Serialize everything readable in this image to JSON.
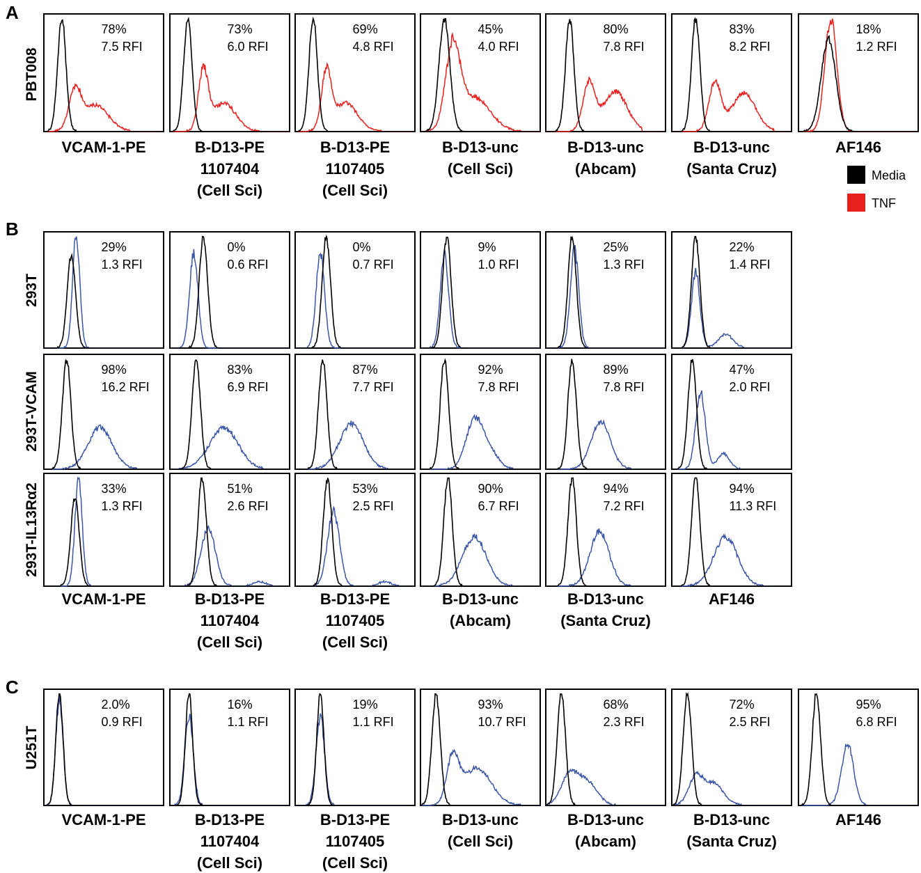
{
  "colors": {
    "media": "#000000",
    "tnf": "#e8201e",
    "transduced": "#3a56a5"
  },
  "legend": [
    {
      "label": "Media",
      "color": "#000000"
    },
    {
      "label": "TNF",
      "color": "#e8201e"
    }
  ],
  "panels": [
    {
      "letter": "A"
    },
    {
      "letter": "B"
    },
    {
      "letter": "C"
    }
  ],
  "chart_data": [
    {
      "type": "area",
      "panel": "A",
      "row_label": "PBT008",
      "series": [
        {
          "name": "Media"
        },
        {
          "name": "TNF"
        }
      ],
      "plots": [
        {
          "pct": "78%",
          "rfi": "7.5 RFI",
          "xlabel": [
            "VCAM-1-PE"
          ],
          "control": {
            "mu": 0.15,
            "sd": 0.035,
            "h": 1.0
          },
          "test": {
            "comps": [
              [
                0.26,
                0.05,
                0.33
              ],
              [
                0.43,
                0.11,
                0.23
              ]
            ],
            "end": 0.72
          }
        },
        {
          "pct": "73%",
          "rfi": "6.0 RFI",
          "xlabel": [
            "B-D13-PE",
            "1107404",
            "(Cell Sci)"
          ],
          "control": {
            "mu": 0.15,
            "sd": 0.035,
            "h": 1.0
          },
          "test": {
            "comps": [
              [
                0.28,
                0.04,
                0.52
              ],
              [
                0.45,
                0.1,
                0.25
              ]
            ],
            "end": 0.76
          }
        },
        {
          "pct": "69%",
          "rfi": "4.8 RFI",
          "xlabel": [
            "B-D13-PE",
            "1107405",
            "(Cell Sci)"
          ],
          "control": {
            "mu": 0.15,
            "sd": 0.035,
            "h": 1.0
          },
          "test": {
            "comps": [
              [
                0.26,
                0.04,
                0.5
              ],
              [
                0.42,
                0.1,
                0.25
              ]
            ],
            "end": 0.76
          }
        },
        {
          "pct": "45%",
          "rfi": "4.0 RFI",
          "xlabel": [
            "B-D13-unc",
            "(Cell Sci)"
          ],
          "control": {
            "mu": 0.2,
            "sd": 0.045,
            "h": 1.0
          },
          "test": {
            "comps": [
              [
                0.27,
                0.06,
                0.7
              ],
              [
                0.45,
                0.13,
                0.3
              ]
            ],
            "end": 0.95
          }
        },
        {
          "pct": "80%",
          "rfi": "7.8 RFI",
          "xlabel": [
            "B-D13-unc",
            "(Abcam)"
          ],
          "control": {
            "mu": 0.2,
            "sd": 0.035,
            "h": 1.0
          },
          "test": {
            "comps": [
              [
                0.36,
                0.05,
                0.42
              ],
              [
                0.58,
                0.1,
                0.35
              ]
            ],
            "end": 0.8
          }
        },
        {
          "pct": "83%",
          "rfi": "8.2 RFI",
          "xlabel": [
            "B-D13-unc",
            "(Santa Cruz)"
          ],
          "control": {
            "mu": 0.2,
            "sd": 0.035,
            "h": 1.0
          },
          "test": {
            "comps": [
              [
                0.36,
                0.05,
                0.42
              ],
              [
                0.6,
                0.1,
                0.34
              ]
            ],
            "end": 0.85
          }
        },
        {
          "pct": "18%",
          "rfi": "1.2 RFI",
          "xlabel": [
            "AF146"
          ],
          "control": {
            "mu": 0.25,
            "sd": 0.06,
            "h": 0.82
          },
          "test": {
            "comps": [
              [
                0.27,
                0.05,
                1.0
              ]
            ],
            "end": 0.6
          }
        }
      ]
    },
    {
      "type": "area",
      "panel": "B",
      "rows": [
        {
          "row_label": "293T",
          "plots": [
            {
              "pct": "29%",
              "rfi": "1.3 RFI",
              "control": {
                "mu": 0.23,
                "sd": 0.035,
                "h": 0.83
              },
              "test": {
                "comps": [
                  [
                    0.27,
                    0.03,
                    1.0
                  ]
                ],
                "end": 0.4
              }
            },
            {
              "pct": "0%",
              "rfi": "0.6 RFI",
              "control": {
                "mu": 0.28,
                "sd": 0.035,
                "h": 1.0
              },
              "test": {
                "comps": [
                  [
                    0.2,
                    0.035,
                    0.85
                  ]
                ],
                "end": 0.4
              }
            },
            {
              "pct": "0%",
              "rfi": "0.7 RFI",
              "control": {
                "mu": 0.26,
                "sd": 0.035,
                "h": 1.0
              },
              "test": {
                "comps": [
                  [
                    0.21,
                    0.035,
                    0.85
                  ]
                ],
                "end": 0.4
              }
            },
            {
              "pct": "9%",
              "rfi": "1.0 RFI",
              "control": {
                "mu": 0.22,
                "sd": 0.035,
                "h": 1.0
              },
              "test": {
                "comps": [
                  [
                    0.2,
                    0.035,
                    0.83
                  ]
                ],
                "end": 0.4
              }
            },
            {
              "pct": "25%",
              "rfi": "1.3 RFI",
              "control": {
                "mu": 0.22,
                "sd": 0.035,
                "h": 1.0
              },
              "test": {
                "comps": [
                  [
                    0.24,
                    0.035,
                    0.88
                  ]
                ],
                "end": 0.48
              }
            },
            {
              "pct": "22%",
              "rfi": "1.4 RFI",
              "control": {
                "mu": 0.2,
                "sd": 0.035,
                "h": 1.0
              },
              "test": {
                "comps": [
                  [
                    0.2,
                    0.035,
                    0.68
                  ],
                  [
                    0.45,
                    0.06,
                    0.12
                  ]
                ],
                "end": 0.6
              }
            }
          ]
        },
        {
          "row_label": "293T-VCAM",
          "plots": [
            {
              "pct": "98%",
              "rfi": "16.2 RFI",
              "control": {
                "mu": 0.19,
                "sd": 0.035,
                "h": 1.0
              },
              "test": {
                "comps": [
                  [
                    0.47,
                    0.1,
                    0.38
                  ]
                ],
                "end": 0.78
              }
            },
            {
              "pct": "83%",
              "rfi": "6.9 RFI",
              "control": {
                "mu": 0.22,
                "sd": 0.035,
                "h": 1.0
              },
              "test": {
                "comps": [
                  [
                    0.45,
                    0.12,
                    0.37
                  ]
                ],
                "end": 0.78
              }
            },
            {
              "pct": "87%",
              "rfi": "7.7 RFI",
              "control": {
                "mu": 0.23,
                "sd": 0.035,
                "h": 1.0
              },
              "test": {
                "comps": [
                  [
                    0.47,
                    0.1,
                    0.41
                  ]
                ],
                "end": 0.78
              }
            },
            {
              "pct": "92%",
              "rfi": "7.8 RFI",
              "control": {
                "mu": 0.2,
                "sd": 0.035,
                "h": 1.0
              },
              "test": {
                "comps": [
                  [
                    0.45,
                    0.07,
                    0.44
                  ],
                  [
                    0.58,
                    0.07,
                    0.15
                  ]
                ],
                "end": 0.78
              }
            },
            {
              "pct": "89%",
              "rfi": "7.8 RFI",
              "control": {
                "mu": 0.22,
                "sd": 0.035,
                "h": 1.0
              },
              "test": {
                "comps": [
                  [
                    0.46,
                    0.08,
                    0.43
                  ]
                ],
                "end": 0.78
              }
            },
            {
              "pct": "47%",
              "rfi": "2.0 RFI",
              "control": {
                "mu": 0.17,
                "sd": 0.035,
                "h": 1.0
              },
              "test": {
                "comps": [
                  [
                    0.24,
                    0.04,
                    0.7
                  ],
                  [
                    0.43,
                    0.05,
                    0.14
                  ]
                ],
                "end": 0.62
              }
            }
          ]
        },
        {
          "row_label": "293T-IL13Rα2",
          "plots": [
            {
              "pct": "33%",
              "rfi": "1.3 RFI",
              "xlabel": [
                "VCAM-1-PE"
              ],
              "control": {
                "mu": 0.26,
                "sd": 0.035,
                "h": 0.82
              },
              "test": {
                "comps": [
                  [
                    0.29,
                    0.03,
                    1.0
                  ]
                ],
                "end": 0.45
              }
            },
            {
              "pct": "51%",
              "rfi": "2.6 RFI",
              "xlabel": [
                "B-D13-PE",
                "1107404",
                "(Cell Sci)"
              ],
              "control": {
                "mu": 0.27,
                "sd": 0.035,
                "h": 1.0
              },
              "test": {
                "comps": [
                  [
                    0.32,
                    0.06,
                    0.53
                  ],
                  [
                    0.75,
                    0.05,
                    0.04
                  ]
                ],
                "end": 0.95
              }
            },
            {
              "pct": "53%",
              "rfi": "2.5 RFI",
              "xlabel": [
                "B-D13-PE",
                "1107405",
                "(Cell Sci)"
              ],
              "control": {
                "mu": 0.27,
                "sd": 0.035,
                "h": 1.0
              },
              "test": {
                "comps": [
                  [
                    0.32,
                    0.05,
                    0.69
                  ],
                  [
                    0.75,
                    0.05,
                    0.04
                  ]
                ],
                "end": 0.95
              }
            },
            {
              "pct": "90%",
              "rfi": "6.7 RFI",
              "xlabel": [
                "B-D13-unc",
                "(Abcam)"
              ],
              "control": {
                "mu": 0.23,
                "sd": 0.035,
                "h": 1.0
              },
              "test": {
                "comps": [
                  [
                    0.45,
                    0.1,
                    0.45
                  ]
                ],
                "end": 0.82
              }
            },
            {
              "pct": "94%",
              "rfi": "7.2 RFI",
              "xlabel": [
                "B-D13-unc",
                "(Santa Cruz)"
              ],
              "control": {
                "mu": 0.22,
                "sd": 0.035,
                "h": 1.0
              },
              "test": {
                "comps": [
                  [
                    0.45,
                    0.08,
                    0.5
                  ]
                ],
                "end": 0.75
              }
            },
            {
              "pct": "94%",
              "rfi": "11.3 RFI",
              "xlabel": [
                "AF146"
              ],
              "control": {
                "mu": 0.2,
                "sd": 0.035,
                "h": 1.0
              },
              "test": {
                "comps": [
                  [
                    0.45,
                    0.1,
                    0.45
                  ]
                ],
                "end": 0.82
              }
            }
          ]
        }
      ]
    },
    {
      "type": "area",
      "panel": "C",
      "row_label": "U251T",
      "plots": [
        {
          "pct": "2.0%",
          "rfi": "0.9 RFI",
          "xlabel": [
            "VCAM-1-PE"
          ],
          "control": {
            "mu": 0.13,
            "sd": 0.03,
            "h": 1.0
          },
          "test": {
            "comps": [
              [
                0.13,
                0.03,
                0.95
              ]
            ],
            "end": 0.6
          }
        },
        {
          "pct": "16%",
          "rfi": "1.1 RFI",
          "xlabel": [
            "B-D13-PE",
            "1107404",
            "(Cell Sci)"
          ],
          "control": {
            "mu": 0.16,
            "sd": 0.03,
            "h": 1.0
          },
          "test": {
            "comps": [
              [
                0.16,
                0.035,
                0.8
              ]
            ],
            "end": 0.45
          }
        },
        {
          "pct": "19%",
          "rfi": "1.1 RFI",
          "xlabel": [
            "B-D13-PE",
            "1107405",
            "(Cell Sci)"
          ],
          "control": {
            "mu": 0.21,
            "sd": 0.03,
            "h": 1.0
          },
          "test": {
            "comps": [
              [
                0.21,
                0.035,
                0.8
              ]
            ],
            "end": 0.45
          }
        },
        {
          "pct": "93%",
          "rfi": "10.7 RFI",
          "xlabel": [
            "B-D13-unc",
            "(Cell Sci)"
          ],
          "control": {
            "mu": 0.13,
            "sd": 0.035,
            "h": 1.0
          },
          "test": {
            "comps": [
              [
                0.27,
                0.05,
                0.4
              ],
              [
                0.47,
                0.12,
                0.33
              ]
            ],
            "end": 0.88
          }
        },
        {
          "pct": "68%",
          "rfi": "2.3 RFI",
          "xlabel": [
            "B-D13-unc",
            "(Abcam)"
          ],
          "control": {
            "mu": 0.13,
            "sd": 0.035,
            "h": 1.0
          },
          "test": {
            "comps": [
              [
                0.2,
                0.07,
                0.27
              ],
              [
                0.35,
                0.08,
                0.2
              ]
            ],
            "end": 0.7
          }
        },
        {
          "pct": "72%",
          "rfi": "2.5 RFI",
          "xlabel": [
            "B-D13-unc",
            "(Santa Cruz)"
          ],
          "control": {
            "mu": 0.13,
            "sd": 0.035,
            "h": 1.0
          },
          "test": {
            "comps": [
              [
                0.2,
                0.06,
                0.24
              ],
              [
                0.35,
                0.08,
                0.19
              ]
            ],
            "end": 0.7
          }
        },
        {
          "pct": "95%",
          "rfi": "6.8 RFI",
          "xlabel": [
            "AF146"
          ],
          "control": {
            "mu": 0.15,
            "sd": 0.035,
            "h": 1.0
          },
          "test": {
            "comps": [
              [
                0.41,
                0.05,
                0.55
              ]
            ],
            "end": 0.6
          }
        }
      ]
    }
  ]
}
